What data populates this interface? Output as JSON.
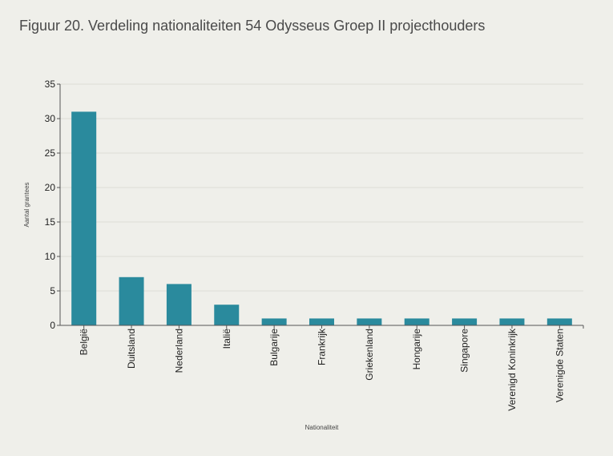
{
  "colors": {
    "background": "#efefea",
    "bar": "#2a8a9d",
    "grid": "#dcdcd6",
    "axis": "#555555"
  },
  "chart_data": {
    "type": "bar",
    "title": "Figuur 20. Verdeling nationaliteiten 54 Odysseus Groep II projecthouders",
    "xlabel": "Nationaliteit",
    "ylabel": "Aantal grantees",
    "categories": [
      "België",
      "Duitsland",
      "Nederland",
      "Italië",
      "Bulgarije",
      "Frankrijk",
      "Griekenland",
      "Hongarije",
      "Singapore",
      "Verenigd Koninkrijk",
      "Verenigde Staten"
    ],
    "values": [
      31,
      7,
      6,
      3,
      1,
      1,
      1,
      1,
      1,
      1,
      1
    ],
    "ylim": [
      0,
      35
    ],
    "yticks": [
      0,
      5,
      10,
      15,
      20,
      25,
      30,
      35
    ],
    "grid": true,
    "legend": "none"
  }
}
